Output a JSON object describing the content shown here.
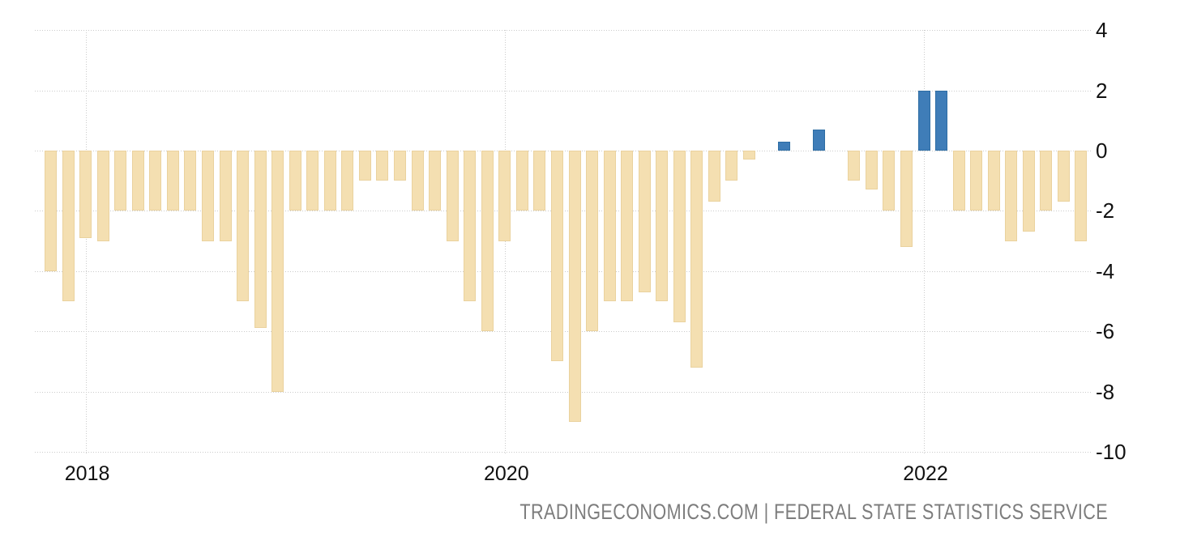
{
  "chart_data": {
    "type": "bar",
    "title": "",
    "xlabel": "",
    "ylabel": "",
    "ylim": [
      -10,
      4
    ],
    "grid": "dotted",
    "legend": "none",
    "axis_side": "right",
    "yticks": [
      4,
      2,
      0,
      -2,
      -4,
      -6,
      -8,
      -10
    ],
    "xticks": [
      {
        "label": "2018",
        "bar_index": 2
      },
      {
        "label": "2020",
        "bar_index": 26
      },
      {
        "label": "2022",
        "bar_index": 50
      }
    ],
    "values": [
      -4.0,
      -5.0,
      -2.9,
      -3.0,
      -2.0,
      -2.0,
      -2.0,
      -2.0,
      -2.0,
      -3.0,
      -3.0,
      -5.0,
      -5.9,
      -8.0,
      -2.0,
      -2.0,
      -2.0,
      -2.0,
      -1.0,
      -1.0,
      -1.0,
      -2.0,
      -2.0,
      -3.0,
      -5.0,
      -6.0,
      -3.0,
      -2.0,
      -2.0,
      -7.0,
      -9.0,
      -6.0,
      -5.0,
      -5.0,
      -4.7,
      -5.0,
      -5.7,
      -7.2,
      -1.7,
      -1.0,
      -0.3,
      0.0,
      0.3,
      0.0,
      0.7,
      0.0,
      -1.0,
      -1.3,
      -2.0,
      -3.2,
      2.0,
      2.0,
      -2.0,
      -2.0,
      -2.0,
      -3.0,
      -2.7,
      -2.0,
      -1.7,
      -3.0
    ],
    "colors": {
      "positive_bar": "#3F7DB8",
      "positive_bar_border": "#2E6DA4",
      "negative_bar": "#F4DFB1",
      "negative_bar_border": "#EAD29E",
      "gridline": "#CBCBCB",
      "axis_text": "#111111",
      "footer_text": "#7D7D7D",
      "background": "#FFFFFF"
    }
  },
  "footer": {
    "attribution": "TRADINGECONOMICS.COM | FEDERAL STATE STATISTICS SERVICE"
  }
}
